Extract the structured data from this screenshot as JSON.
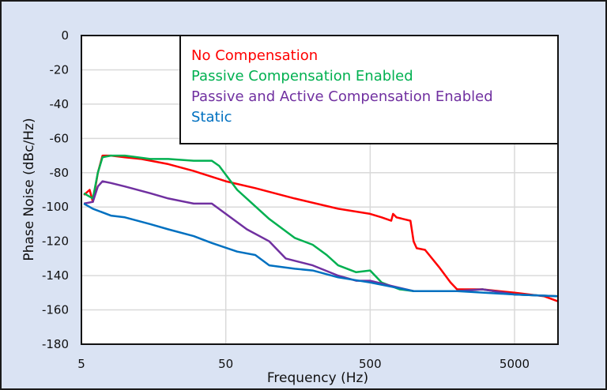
{
  "chart_data": {
    "type": "line",
    "title": "",
    "xlabel": "Frequency (Hz)",
    "ylabel": "Phase Noise  (dBc/Hz)",
    "xscale": "log",
    "xlim": [
      5,
      10000
    ],
    "ylim": [
      -180,
      0
    ],
    "xticks": [
      5,
      50,
      500,
      5000
    ],
    "xtick_labels": [
      "5",
      "50",
      "500",
      "5000"
    ],
    "yticks": [
      0,
      -20,
      -40,
      -60,
      -80,
      -100,
      -120,
      -140,
      -160,
      -180
    ],
    "ytick_labels": [
      "0",
      "-20",
      "-40",
      "-60",
      "-80",
      "-100",
      "-120",
      "-140",
      "-160",
      "-180"
    ],
    "grid": true,
    "legend_position": "top-right",
    "series": [
      {
        "name": "No Compensation",
        "color": "#ff0000",
        "x": [
          5.2,
          5.7,
          6,
          6.5,
          7,
          8,
          10,
          13,
          20,
          30,
          50,
          80,
          150,
          300,
          500,
          600,
          700,
          720,
          760,
          950,
          1000,
          1050,
          1200,
          1500,
          1800,
          2000,
          2300,
          3000,
          5000,
          8000,
          10000
        ],
        "y": [
          -93,
          -90,
          -97,
          -80,
          -70,
          -70,
          -71,
          -72,
          -75,
          -79,
          -85,
          -89,
          -95,
          -101,
          -104,
          -106,
          -108,
          -104,
          -106,
          -108,
          -120,
          -124,
          -125,
          -135,
          -144,
          -148,
          -148,
          -148,
          -150,
          -152,
          -155
        ]
      },
      {
        "name": "Passive Compensation Enabled",
        "color": "#00b050",
        "x": [
          5.2,
          6,
          6.5,
          7,
          8,
          10,
          15,
          20,
          30,
          40,
          45,
          60,
          100,
          150,
          200,
          250,
          300,
          400,
          500,
          600,
          800,
          1000,
          2000,
          3000,
          5000,
          10000
        ],
        "y": [
          -92,
          -95,
          -80,
          -71,
          -70,
          -70,
          -72,
          -72,
          -73,
          -73,
          -76,
          -90,
          -107,
          -118,
          -122,
          -128,
          -134,
          -138,
          -137,
          -144,
          -148,
          -149,
          -149,
          -148,
          -151,
          -152
        ]
      },
      {
        "name": "Passive and Active Compensation Enabled",
        "color": "#7030a0",
        "x": [
          5.2,
          6,
          6.5,
          7,
          8,
          10,
          15,
          20,
          30,
          40,
          50,
          70,
          100,
          130,
          200,
          300,
          400,
          500,
          700,
          1000,
          2000,
          3000,
          5000,
          10000
        ],
        "y": [
          -98,
          -97,
          -88,
          -85,
          -86,
          -88,
          -92,
          -95,
          -98,
          -98,
          -104,
          -113,
          -120,
          -130,
          -134,
          -140,
          -143,
          -143,
          -146,
          -149,
          -149,
          -148,
          -151,
          -152
        ]
      },
      {
        "name": "Static",
        "color": "#0070c0",
        "x": [
          5.2,
          6,
          8,
          10,
          15,
          20,
          30,
          40,
          60,
          80,
          100,
          150,
          200,
          300,
          500,
          1000,
          2000,
          5000,
          10000
        ],
        "y": [
          -98,
          -101,
          -105,
          -106,
          -110,
          -113,
          -117,
          -121,
          -126,
          -128,
          -134,
          -136,
          -137,
          -141,
          -144,
          -149,
          -149,
          -151,
          -152
        ]
      }
    ]
  }
}
